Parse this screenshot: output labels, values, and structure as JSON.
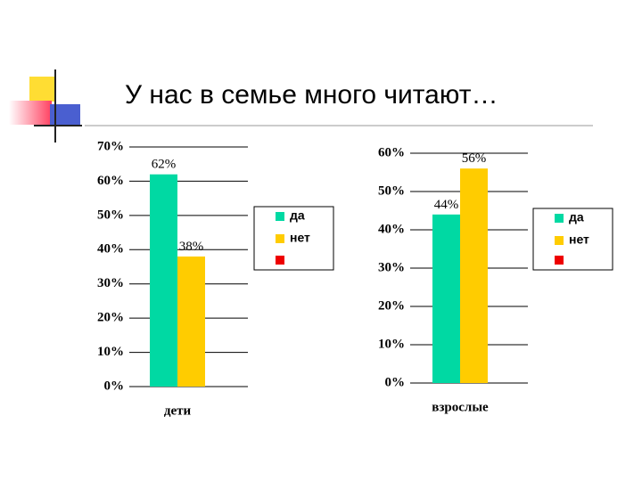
{
  "title": "У нас в семье много читают…",
  "chart_data": [
    {
      "type": "bar",
      "categories": [
        "дети"
      ],
      "series": [
        {
          "name": "да",
          "color": "#00d9a3",
          "values": [
            62
          ],
          "value_labels": [
            "62%"
          ]
        },
        {
          "name": "нет",
          "color": "#ffcc00",
          "values": [
            38
          ],
          "value_labels": [
            "38%"
          ]
        }
      ],
      "ylim": [
        0,
        70
      ],
      "yticks": [
        {
          "value": 0,
          "label": "0%"
        },
        {
          "value": 10,
          "label": "10%"
        },
        {
          "value": 20,
          "label": "20%"
        },
        {
          "value": 30,
          "label": "30%"
        },
        {
          "value": 40,
          "label": "40%"
        },
        {
          "value": 50,
          "label": "50%"
        },
        {
          "value": 60,
          "label": "60%"
        },
        {
          "value": 70,
          "label": "70%"
        }
      ],
      "grid": true
    },
    {
      "type": "bar",
      "categories": [
        "взрослые"
      ],
      "series": [
        {
          "name": "да",
          "color": "#00d9a3",
          "values": [
            44
          ],
          "value_labels": [
            "44%"
          ]
        },
        {
          "name": "нет",
          "color": "#ffcc00",
          "values": [
            56
          ],
          "value_labels": [
            "56%"
          ]
        }
      ],
      "ylim": [
        0,
        60
      ],
      "yticks": [
        {
          "value": 0,
          "label": "0%"
        },
        {
          "value": 10,
          "label": "10%"
        },
        {
          "value": 20,
          "label": "20%"
        },
        {
          "value": 30,
          "label": "30%"
        },
        {
          "value": 40,
          "label": "40%"
        },
        {
          "value": 50,
          "label": "50%"
        },
        {
          "value": 60,
          "label": "60%"
        }
      ],
      "grid": true
    }
  ]
}
